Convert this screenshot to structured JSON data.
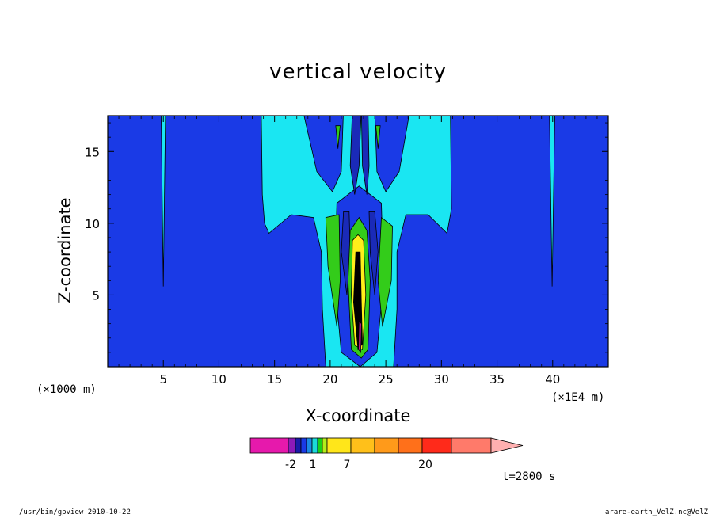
{
  "chart_data": {
    "type": "contour",
    "title": "vertical velocity",
    "xlabel": "X-coordinate",
    "ylabel": "Z-coordinate",
    "x_unit_left": "(×1000 m)",
    "x_unit_right": "(×1E4 m)",
    "xlim": [
      0,
      45
    ],
    "ylim": [
      0,
      17.5
    ],
    "x_ticks": [
      "5",
      "10",
      "15",
      "20",
      "25",
      "30",
      "35",
      "40"
    ],
    "x_tick_values": [
      5,
      10,
      15,
      20,
      25,
      30,
      35,
      40
    ],
    "y_ticks": [
      "5",
      "10",
      "15"
    ],
    "y_tick_values": [
      5,
      10,
      15
    ],
    "grid": false,
    "time_label": "t=2800 s",
    "colorbar": {
      "colors": [
        "#e619ac",
        "#8c1ab8",
        "#1a1aa8",
        "#1a3ae6",
        "#1a8ae6",
        "#1adada",
        "#1ad11a",
        "#b3ee1a",
        "#ffe61a",
        "#ffc01a",
        "#ff9a1a",
        "#ff701a",
        "#ff2a1a",
        "#ff7a6a",
        "#ffb0b0"
      ],
      "tick_labels": [
        "-2",
        "1",
        "7",
        "20"
      ]
    },
    "fill_colors": {
      "background": "#1a3ae6",
      "cyan": "#1ae6f2",
      "deep_blue": "#1a2ab8",
      "green": "#33cc1a",
      "yellow": "#ffee1a",
      "black": "#000000",
      "magenta": "#e619ac"
    }
  },
  "footer": {
    "left": "/usr/bin/gpview   2010-10-22",
    "right": "arare-earth_VelZ.nc@VelZ"
  }
}
